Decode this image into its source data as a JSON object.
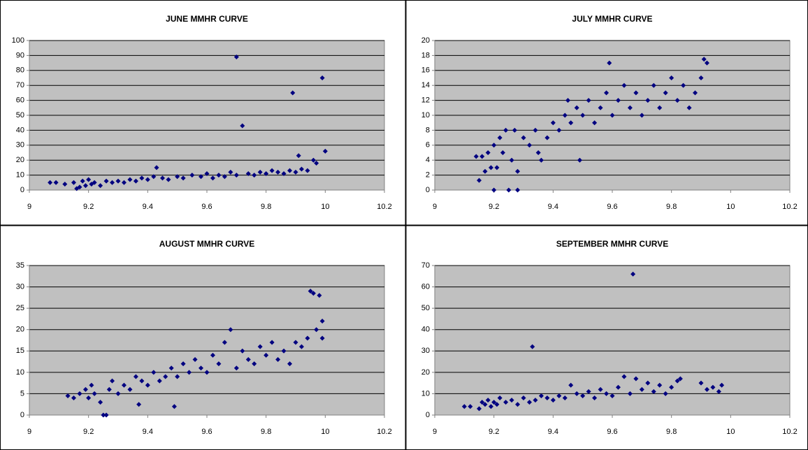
{
  "chart_data": [
    {
      "type": "scatter",
      "title": "JUNE MMHR CURVE",
      "color": "#000080",
      "grid": true,
      "xlim": [
        9,
        10.2
      ],
      "xticks": [
        9,
        9.2,
        9.4,
        9.6,
        9.8,
        10,
        10.2
      ],
      "ylim": [
        0,
        100
      ],
      "yticks": [
        0,
        10,
        20,
        30,
        40,
        50,
        60,
        70,
        80,
        90,
        100
      ],
      "x": [
        9.07,
        9.09,
        9.12,
        9.15,
        9.16,
        9.17,
        9.18,
        9.19,
        9.2,
        9.21,
        9.22,
        9.24,
        9.26,
        9.28,
        9.3,
        9.32,
        9.34,
        9.36,
        9.38,
        9.4,
        9.42,
        9.43,
        9.45,
        9.47,
        9.5,
        9.52,
        9.55,
        9.58,
        9.6,
        9.62,
        9.64,
        9.66,
        9.68,
        9.7,
        9.7,
        9.72,
        9.74,
        9.76,
        9.78,
        9.8,
        9.82,
        9.84,
        9.86,
        9.88,
        9.89,
        9.9,
        9.91,
        9.92,
        9.94,
        9.96,
        9.97,
        9.99,
        10.0
      ],
      "values": [
        5,
        5,
        4,
        5,
        1,
        2,
        6,
        3,
        7,
        4,
        5,
        3,
        6,
        5,
        6,
        5,
        7,
        6,
        8,
        7,
        9,
        15,
        8,
        7,
        9,
        8,
        10,
        9,
        11,
        8,
        10,
        9,
        12,
        89,
        10,
        43,
        11,
        10,
        12,
        11,
        13,
        12,
        11,
        13,
        65,
        12,
        23,
        14,
        13,
        20,
        18,
        75,
        26
      ]
    },
    {
      "type": "scatter",
      "title": "JULY MMHR CURVE",
      "color": "#000080",
      "grid": true,
      "xlim": [
        9,
        10.2
      ],
      "xticks": [
        9,
        9.2,
        9.4,
        9.6,
        9.8,
        10,
        10.2
      ],
      "ylim": [
        0,
        20
      ],
      "yticks": [
        0,
        2,
        4,
        6,
        8,
        10,
        12,
        14,
        16,
        18,
        20
      ],
      "x": [
        9.14,
        9.15,
        9.16,
        9.17,
        9.18,
        9.19,
        9.2,
        9.2,
        9.21,
        9.22,
        9.23,
        9.24,
        9.25,
        9.26,
        9.27,
        9.28,
        9.28,
        9.3,
        9.32,
        9.34,
        9.35,
        9.36,
        9.38,
        9.4,
        9.42,
        9.44,
        9.45,
        9.46,
        9.48,
        9.49,
        9.5,
        9.52,
        9.54,
        9.56,
        9.58,
        9.59,
        9.6,
        9.62,
        9.64,
        9.66,
        9.68,
        9.7,
        9.72,
        9.74,
        9.76,
        9.78,
        9.8,
        9.82,
        9.84,
        9.86,
        9.88,
        9.9,
        9.91,
        9.92
      ],
      "values": [
        4.5,
        1.3,
        4.5,
        2.5,
        5,
        3,
        0,
        6,
        3,
        7,
        5,
        8,
        0,
        4,
        8,
        0,
        2.5,
        7,
        6,
        8,
        5,
        4,
        7,
        9,
        8,
        10,
        12,
        9,
        11,
        4,
        10,
        12,
        9,
        11,
        13,
        17,
        10,
        12,
        14,
        11,
        13,
        10,
        12,
        14,
        11,
        13,
        15,
        12,
        14,
        11,
        13,
        15,
        17.5,
        17
      ]
    },
    {
      "type": "scatter",
      "title": "AUGUST MMHR CURVE",
      "color": "#000080",
      "grid": true,
      "xlim": [
        9,
        10.2
      ],
      "xticks": [
        9,
        9.2,
        9.4,
        9.6,
        9.8,
        10,
        10.2
      ],
      "ylim": [
        0,
        35
      ],
      "yticks": [
        0,
        5,
        10,
        15,
        20,
        25,
        30,
        35
      ],
      "x": [
        9.13,
        9.15,
        9.17,
        9.19,
        9.2,
        9.21,
        9.22,
        9.24,
        9.25,
        9.26,
        9.27,
        9.28,
        9.3,
        9.32,
        9.34,
        9.36,
        9.37,
        9.38,
        9.4,
        9.42,
        9.44,
        9.46,
        9.48,
        9.49,
        9.5,
        9.52,
        9.54,
        9.56,
        9.58,
        9.6,
        9.62,
        9.64,
        9.66,
        9.68,
        9.7,
        9.72,
        9.74,
        9.76,
        9.78,
        9.8,
        9.82,
        9.84,
        9.86,
        9.88,
        9.9,
        9.92,
        9.94,
        9.95,
        9.96,
        9.97,
        9.98,
        9.99,
        9.99
      ],
      "values": [
        4.5,
        4,
        5,
        6,
        4,
        7,
        5,
        3,
        0,
        0,
        6,
        8,
        5,
        7,
        6,
        9,
        2.5,
        8,
        7,
        10,
        8,
        9,
        11,
        2,
        9,
        12,
        10,
        13,
        11,
        10,
        14,
        12,
        17,
        20,
        11,
        15,
        13,
        12,
        16,
        14,
        17,
        13,
        15,
        12,
        17,
        16,
        18,
        29,
        28.5,
        20,
        28,
        22,
        18
      ]
    },
    {
      "type": "scatter",
      "title": "SEPTEMBER MMHR CURVE",
      "color": "#000080",
      "grid": true,
      "xlim": [
        9,
        10.2
      ],
      "xticks": [
        9,
        9.2,
        9.4,
        9.6,
        9.8,
        10,
        10.2
      ],
      "ylim": [
        0,
        70
      ],
      "yticks": [
        0,
        10,
        20,
        30,
        40,
        50,
        60,
        70
      ],
      "x": [
        9.1,
        9.12,
        9.15,
        9.16,
        9.17,
        9.18,
        9.19,
        9.2,
        9.21,
        9.22,
        9.24,
        9.26,
        9.28,
        9.3,
        9.32,
        9.33,
        9.34,
        9.36,
        9.38,
        9.4,
        9.42,
        9.44,
        9.46,
        9.48,
        9.5,
        9.52,
        9.54,
        9.56,
        9.58,
        9.6,
        9.62,
        9.64,
        9.66,
        9.67,
        9.68,
        9.7,
        9.72,
        9.74,
        9.76,
        9.78,
        9.8,
        9.82,
        9.83,
        9.9,
        9.92,
        9.94,
        9.96,
        9.97
      ],
      "values": [
        4,
        4,
        3,
        6,
        5,
        7,
        4,
        6,
        5,
        8,
        6,
        7,
        5,
        8,
        6,
        32,
        7,
        9,
        8,
        7,
        9,
        8,
        14,
        10,
        9,
        11,
        8,
        12,
        10,
        9,
        13,
        18,
        10,
        66,
        17,
        12,
        15,
        11,
        14,
        10,
        13,
        16,
        17,
        15,
        12,
        13,
        11,
        14
      ]
    }
  ]
}
